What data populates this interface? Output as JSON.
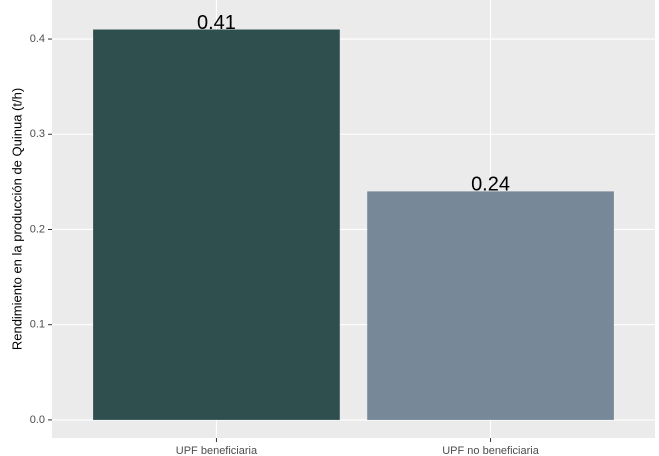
{
  "chart_data": {
    "type": "bar",
    "y_label": "Rendimiento en la producción de Quinua (t/h)",
    "categories": [
      "UPF beneficiaria",
      "UPF no beneficiaria"
    ],
    "values": [
      0.41,
      0.24
    ],
    "colors": [
      "#2f4f4f",
      "#778899"
    ],
    "ylim": [
      -0.019,
      0.441
    ],
    "yticks": [
      {
        "value": 0,
        "label": "0.0"
      },
      0.1,
      0.2,
      0.3,
      0.4
    ],
    "grid": true
  }
}
